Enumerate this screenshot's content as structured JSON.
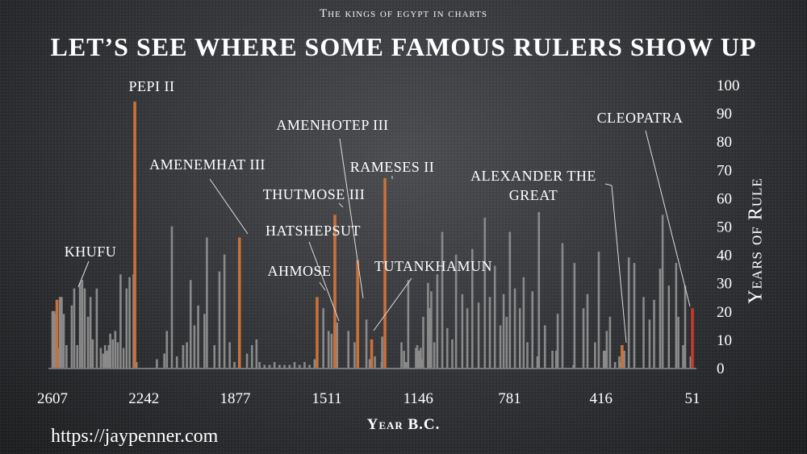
{
  "header": {
    "supertitle": "The kings of egypt in charts",
    "title": "Let’s see where some famous rulers show up"
  },
  "footer": {
    "url": "https://jaypenner.com"
  },
  "chart_data": {
    "type": "bar",
    "xlabel": "Year B.C.",
    "ylabel": "Years of Rule",
    "xlim": [
      2607,
      51
    ],
    "ylim": [
      0,
      100
    ],
    "x_ticks": [
      2607,
      2242,
      1877,
      1511,
      1146,
      781,
      416,
      51
    ],
    "y_ticks": [
      0,
      10,
      20,
      30,
      40,
      50,
      60,
      70,
      80,
      90,
      100
    ],
    "grid": false,
    "colors": {
      "background": "#2f3134",
      "ruler": "#8a8a8a",
      "highlight": "#c9713a",
      "final": "#c23a2f"
    },
    "highlighted": [
      {
        "name": "Khufu",
        "year": 2589,
        "years": 24
      },
      {
        "name": "Pepi II",
        "year": 2278,
        "years": 94
      },
      {
        "name": "Amenemhat III",
        "year": 1860,
        "years": 46
      },
      {
        "name": "Ahmose",
        "year": 1550,
        "years": 25
      },
      {
        "name": "Hatshepsut",
        "year": 1479,
        "years": 15
      },
      {
        "name": "Thutmose III",
        "year": 1479,
        "years": 54
      },
      {
        "name": "Amenhotep III",
        "year": 1388,
        "years": 38
      },
      {
        "name": "Tutankhamun",
        "year": 1332,
        "years": 10
      },
      {
        "name": "Rameses II",
        "year": 1279,
        "years": 67
      },
      {
        "name": "Alexander the Great",
        "year": 332,
        "years": 8
      },
      {
        "name": "Cleopatra",
        "year": 51,
        "years": 21
      }
    ],
    "annotations": [
      {
        "king": "Khufu",
        "label": "Khufu"
      },
      {
        "king": "Pepi II",
        "label": "Pepi II"
      },
      {
        "king": "Amenemhat III",
        "label": "Amenemhat III"
      },
      {
        "king": "Ahmose",
        "label": "Ahmose"
      },
      {
        "king": "Hatshepsut",
        "label": "Hatshepsut"
      },
      {
        "king": "Thutmose III",
        "label": "Thutmose III"
      },
      {
        "king": "Amenhotep III",
        "label": "Amenhotep III"
      },
      {
        "king": "Tutankhamun",
        "label": "Tutankhamun"
      },
      {
        "king": "Rameses II",
        "label": "Rameses II"
      },
      {
        "king": "Alexander the Great",
        "label": "Alexander the",
        "label2": "Great"
      },
      {
        "king": "Cleopatra",
        "label": "Cleopatra"
      }
    ],
    "series": [
      {
        "values": [
          [
            2607,
            20
          ],
          [
            2600,
            20
          ],
          [
            2593,
            19
          ],
          [
            2584,
            7
          ],
          [
            2577,
            25
          ],
          [
            2570,
            25
          ],
          [
            2562,
            19
          ],
          [
            2551,
            8
          ],
          [
            2530,
            22
          ],
          [
            2520,
            28
          ],
          [
            2508,
            8
          ],
          [
            2497,
            30
          ],
          [
            2488,
            31
          ],
          [
            2478,
            28
          ],
          [
            2465,
            18
          ],
          [
            2455,
            25
          ],
          [
            2446,
            10
          ],
          [
            2430,
            28
          ],
          [
            2414,
            7
          ],
          [
            2404,
            5
          ],
          [
            2397,
            8
          ],
          [
            2390,
            6
          ],
          [
            2382,
            8
          ],
          [
            2376,
            12
          ],
          [
            2366,
            10
          ],
          [
            2356,
            13
          ],
          [
            2346,
            9
          ],
          [
            2335,
            33
          ],
          [
            2323,
            7
          ],
          [
            2311,
            28
          ],
          [
            2299,
            32
          ],
          [
            2283,
            33
          ],
          [
            2271,
            2
          ],
          [
            2190,
            3
          ],
          [
            2160,
            5
          ],
          [
            2150,
            13
          ],
          [
            2130,
            50
          ],
          [
            2110,
            4
          ],
          [
            2085,
            8
          ],
          [
            2070,
            9
          ],
          [
            2055,
            31
          ],
          [
            2040,
            15
          ],
          [
            2025,
            22
          ],
          [
            2000,
            19
          ],
          [
            1990,
            46
          ],
          [
            1960,
            8
          ],
          [
            1940,
            34
          ],
          [
            1920,
            40
          ],
          [
            1899,
            9
          ],
          [
            1880,
            2
          ],
          [
            1830,
            5
          ],
          [
            1810,
            8
          ],
          [
            1792,
            10
          ],
          [
            1780,
            2
          ],
          [
            1760,
            1
          ],
          [
            1740,
            1
          ],
          [
            1720,
            2
          ],
          [
            1700,
            1
          ],
          [
            1680,
            1
          ],
          [
            1660,
            1
          ],
          [
            1640,
            2
          ],
          [
            1620,
            1
          ],
          [
            1600,
            2
          ],
          [
            1580,
            1
          ],
          [
            1560,
            3
          ],
          [
            1525,
            21
          ],
          [
            1504,
            13
          ],
          [
            1492,
            12
          ],
          [
            1470,
            16
          ],
          [
            1425,
            13
          ],
          [
            1400,
            9
          ],
          [
            1353,
            17
          ],
          [
            1340,
            3
          ],
          [
            1319,
            4
          ],
          [
            1292,
            2
          ],
          [
            1290,
            11
          ],
          [
            1213,
            9
          ],
          [
            1203,
            6
          ],
          [
            1197,
            2
          ],
          [
            1189,
            2
          ],
          [
            1186,
            31
          ],
          [
            1155,
            7
          ],
          [
            1150,
            8
          ],
          [
            1143,
            6
          ],
          [
            1136,
            7
          ],
          [
            1129,
            3
          ],
          [
            1126,
            18
          ],
          [
            1107,
            30
          ],
          [
            1099,
            21
          ],
          [
            1094,
            27
          ],
          [
            1082,
            9
          ],
          [
            1070,
            33
          ],
          [
            1050,
            48
          ],
          [
            1030,
            14
          ],
          [
            1010,
            10
          ],
          [
            995,
            40
          ],
          [
            970,
            26
          ],
          [
            950,
            21
          ],
          [
            930,
            42
          ],
          [
            905,
            23
          ],
          [
            880,
            53
          ],
          [
            860,
            25
          ],
          [
            840,
            36
          ],
          [
            818,
            15
          ],
          [
            805,
            26
          ],
          [
            793,
            18
          ],
          [
            780,
            48
          ],
          [
            760,
            28
          ],
          [
            740,
            21
          ],
          [
            725,
            32
          ],
          [
            710,
            9
          ],
          [
            690,
            27
          ],
          [
            670,
            4
          ],
          [
            664,
            55
          ],
          [
            640,
            15
          ],
          [
            610,
            6
          ],
          [
            595,
            6
          ],
          [
            589,
            19
          ],
          [
            570,
            44
          ],
          [
            526,
            1
          ],
          [
            522,
            37
          ],
          [
            486,
            21
          ],
          [
            470,
            26
          ],
          [
            440,
            9
          ],
          [
            425,
            41
          ],
          [
            405,
            6
          ],
          [
            399,
            6
          ],
          [
            393,
            13
          ],
          [
            380,
            18
          ],
          [
            360,
            2
          ],
          [
            343,
            4
          ],
          [
            338,
            2
          ],
          [
            336,
            2
          ],
          [
            323,
            6
          ],
          [
            305,
            39
          ],
          [
            283,
            37
          ],
          [
            246,
            25
          ],
          [
            222,
            17
          ],
          [
            204,
            24
          ],
          [
            180,
            35
          ],
          [
            170,
            54
          ],
          [
            145,
            29
          ],
          [
            116,
            37
          ],
          [
            107,
            18
          ],
          [
            88,
            8
          ],
          [
            80,
            29
          ],
          [
            58,
            4
          ]
        ]
      }
    ]
  }
}
